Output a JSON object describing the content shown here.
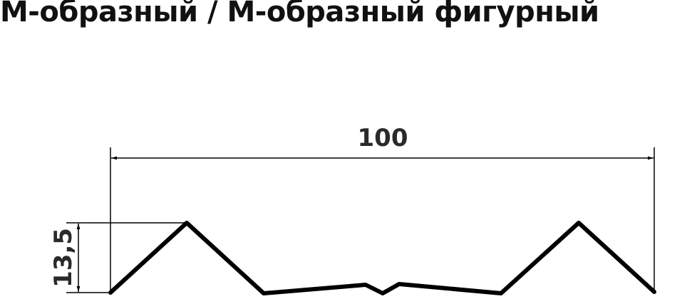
{
  "title": "М-образный / М-образный фигурный",
  "dimensions": {
    "width": "100",
    "height": "13,5"
  },
  "colors": {
    "profile": "#000000",
    "text": "#111111"
  }
}
